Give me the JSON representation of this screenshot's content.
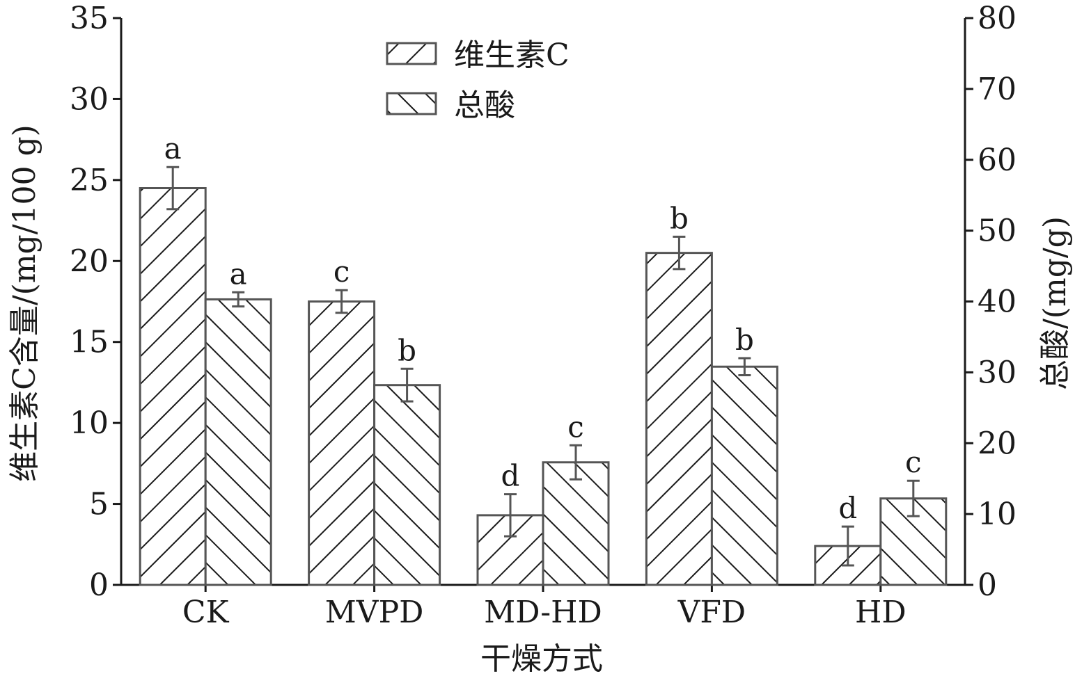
{
  "chart_data": {
    "type": "bar",
    "categories": [
      "CK",
      "MVPD",
      "MD-HD",
      "VFD",
      "HD"
    ],
    "xlabel": "干燥方式",
    "ylabel_left": "维生素C含量/(mg/100 g)",
    "ylabel_right": "总酸/(mg/g)",
    "ylim_left": [
      0,
      35
    ],
    "ylim_right": [
      0,
      80
    ],
    "yticks_left": [
      0,
      5,
      10,
      15,
      20,
      25,
      30,
      35
    ],
    "yticks_right": [
      0,
      10,
      20,
      30,
      40,
      50,
      60,
      70,
      80
    ],
    "legend_position": "top-center",
    "grid": false,
    "series": [
      {
        "name": "维生素C",
        "axis": "left",
        "hatch": "forward-diagonal",
        "values": [
          24.5,
          17.5,
          4.3,
          20.5,
          2.4
        ],
        "errors": [
          1.3,
          0.7,
          1.3,
          1.0,
          1.2
        ],
        "significance": [
          "a",
          "c",
          "d",
          "b",
          "d"
        ]
      },
      {
        "name": "总酸",
        "axis": "right",
        "hatch": "back-diagonal",
        "values": [
          40.3,
          28.2,
          17.3,
          30.8,
          12.2
        ],
        "errors": [
          1.0,
          2.3,
          2.4,
          1.2,
          2.5
        ],
        "significance": [
          "a",
          "b",
          "c",
          "b",
          "c"
        ]
      }
    ]
  },
  "colors": {
    "bar_edge": "#555555",
    "hatch": "#1a1a1a",
    "axis": "#1a1a1a",
    "error_bar": "#555555"
  }
}
